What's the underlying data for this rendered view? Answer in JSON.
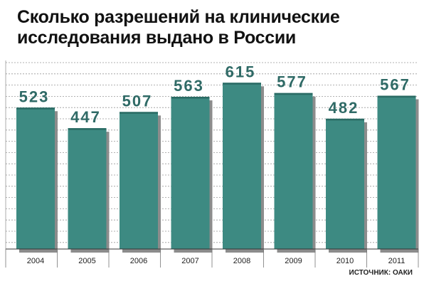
{
  "title": {
    "line1": "Сколько разрешений на клинические",
    "line2": "исследования выдано в России"
  },
  "source": "ИСТОЧНИК: ОАКИ",
  "colors": {
    "bar": "#3d8a82",
    "bar_top": "#2a6b64",
    "shadow": "#8c8c8c",
    "value_label": "#2f6a66",
    "grid": "#999999",
    "background": "#ffffff"
  },
  "chart_data": {
    "type": "bar",
    "title": "Сколько разрешений на клинические исследования выдано в России",
    "categories": [
      "2004",
      "2005",
      "2006",
      "2007",
      "2008",
      "2009",
      "2010",
      "2011"
    ],
    "values": [
      523,
      447,
      507,
      563,
      615,
      577,
      482,
      567
    ],
    "ylim": [
      0,
      660
    ],
    "grid": true,
    "xlabel": "",
    "ylabel": ""
  }
}
